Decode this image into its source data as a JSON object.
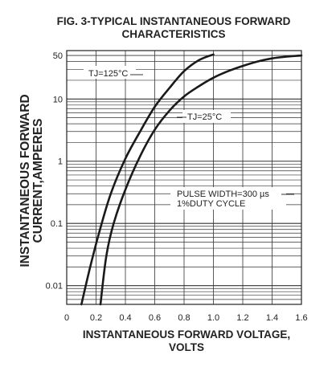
{
  "chart_data": {
    "type": "line",
    "title_line1": "FIG. 3-TYPICAL INSTANTANEOUS FORWARD",
    "title_line2": "CHARACTERISTICS",
    "ylabel_line1": "INSTANTANEOUS FORWARD",
    "ylabel_line2": "CURRENT,AMPERES",
    "xlabel_line1": "INSTANTANEOUS FORWARD VOLTAGE,",
    "xlabel_line2": "VOLTS",
    "xlim": [
      0,
      1.6
    ],
    "ylim": [
      0.005,
      60
    ],
    "yscale": "log",
    "grid": true,
    "x_ticks": [
      "0",
      "0.2",
      "0.4",
      "0.6",
      "0.8",
      "1.0",
      "1.2",
      "1.4",
      "1.6"
    ],
    "y_ticks": [
      {
        "label": "50",
        "value": 50
      },
      {
        "label": "10",
        "value": 10
      },
      {
        "label": "1",
        "value": 1
      },
      {
        "label": "0.1",
        "value": 0.1
      },
      {
        "label": "0.01",
        "value": 0.01
      }
    ],
    "series": [
      {
        "name": "TJ=125°C",
        "points": [
          [
            0.1,
            0.005
          ],
          [
            0.16,
            0.02
          ],
          [
            0.22,
            0.07
          ],
          [
            0.3,
            0.3
          ],
          [
            0.4,
            1.1
          ],
          [
            0.5,
            3
          ],
          [
            0.6,
            7.5
          ],
          [
            0.7,
            15
          ],
          [
            0.8,
            28
          ],
          [
            0.9,
            42
          ],
          [
            1.0,
            52
          ]
        ]
      },
      {
        "name": "TJ=25°C",
        "points": [
          [
            0.23,
            0.005
          ],
          [
            0.27,
            0.03
          ],
          [
            0.32,
            0.1
          ],
          [
            0.4,
            0.35
          ],
          [
            0.5,
            1.2
          ],
          [
            0.6,
            3.2
          ],
          [
            0.7,
            6.5
          ],
          [
            0.8,
            11
          ],
          [
            0.9,
            16
          ],
          [
            1.0,
            22
          ],
          [
            1.1,
            28
          ],
          [
            1.2,
            34
          ],
          [
            1.3,
            40
          ],
          [
            1.4,
            45
          ],
          [
            1.5,
            48
          ],
          [
            1.6,
            50
          ]
        ]
      }
    ],
    "annotations": {
      "t125": "TJ=125°C",
      "t25": "TJ=25°C",
      "pulse_line1": "PULSE WIDTH=300 µs",
      "pulse_line2": "1%DUTY CYCLE"
    }
  }
}
